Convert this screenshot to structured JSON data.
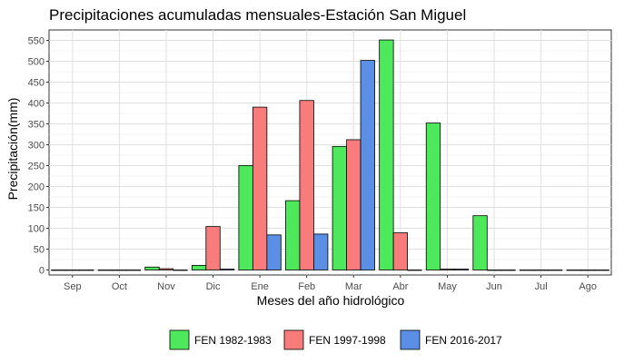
{
  "chart_data": {
    "type": "bar",
    "title": "Precipitaciones acumuladas mensuales-Estación San Miguel",
    "xlabel": "Meses del año hidrológico",
    "ylabel": "Precipitación(mm)",
    "categories": [
      "Sep",
      "Oct",
      "Nov",
      "Dic",
      "Ene",
      "Feb",
      "Mar",
      "Abr",
      "May",
      "Jun",
      "Jul",
      "Ago"
    ],
    "ylim": [
      -12,
      575
    ],
    "yticks": [
      0,
      50,
      100,
      150,
      200,
      250,
      300,
      350,
      400,
      450,
      500,
      550
    ],
    "grid": true,
    "legend_position": "bottom",
    "series": [
      {
        "name": "FEN 1982-1983",
        "color": "#4de85c",
        "values": [
          0,
          0,
          7,
          11,
          250,
          166,
          296,
          551,
          352,
          130,
          0,
          0
        ]
      },
      {
        "name": "FEN 1997-1998",
        "color": "#f87c7c",
        "values": [
          0,
          0,
          3,
          104,
          390,
          406,
          312,
          89,
          2,
          0,
          0,
          0
        ]
      },
      {
        "name": "FEN 2016-2017",
        "color": "#5b8fe5",
        "values": [
          0,
          0,
          0,
          2,
          84,
          86,
          502,
          0,
          2,
          0,
          0,
          0
        ]
      }
    ]
  }
}
